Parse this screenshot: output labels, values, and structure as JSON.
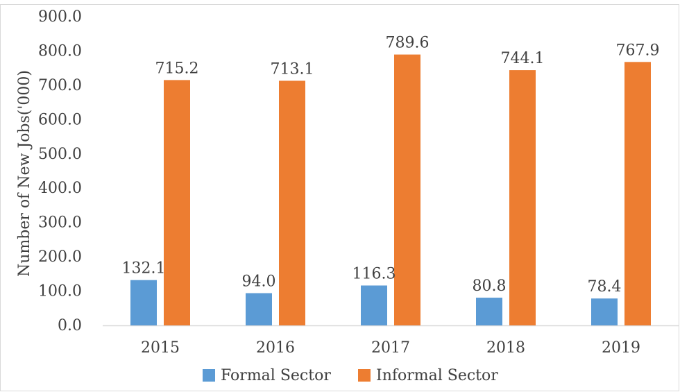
{
  "chart_data": {
    "type": "bar",
    "categories": [
      "2015",
      "2016",
      "2017",
      "2018",
      "2019"
    ],
    "series": [
      {
        "name": "Formal Sector",
        "values": [
          132.1,
          94.0,
          116.3,
          80.8,
          78.4
        ],
        "labels": [
          "132.1",
          "94.0",
          "116.3",
          "80.8",
          "78.4"
        ],
        "color": "#5b9bd5"
      },
      {
        "name": "Informal Sector",
        "values": [
          715.2,
          713.1,
          789.6,
          744.1,
          767.9
        ],
        "labels": [
          "715.2",
          "713.1",
          "789.6",
          "744.1",
          "767.9"
        ],
        "color": "#ed7d31"
      }
    ],
    "ylabel": "Number of New Jobs('000)",
    "xlabel": "",
    "ylim": [
      0,
      900
    ],
    "yticks": [
      "0.0",
      "100.0",
      "200.0",
      "300.0",
      "400.0",
      "500.0",
      "600.0",
      "700.0",
      "800.0",
      "900.0"
    ],
    "grid": false,
    "legend": "bottom"
  }
}
